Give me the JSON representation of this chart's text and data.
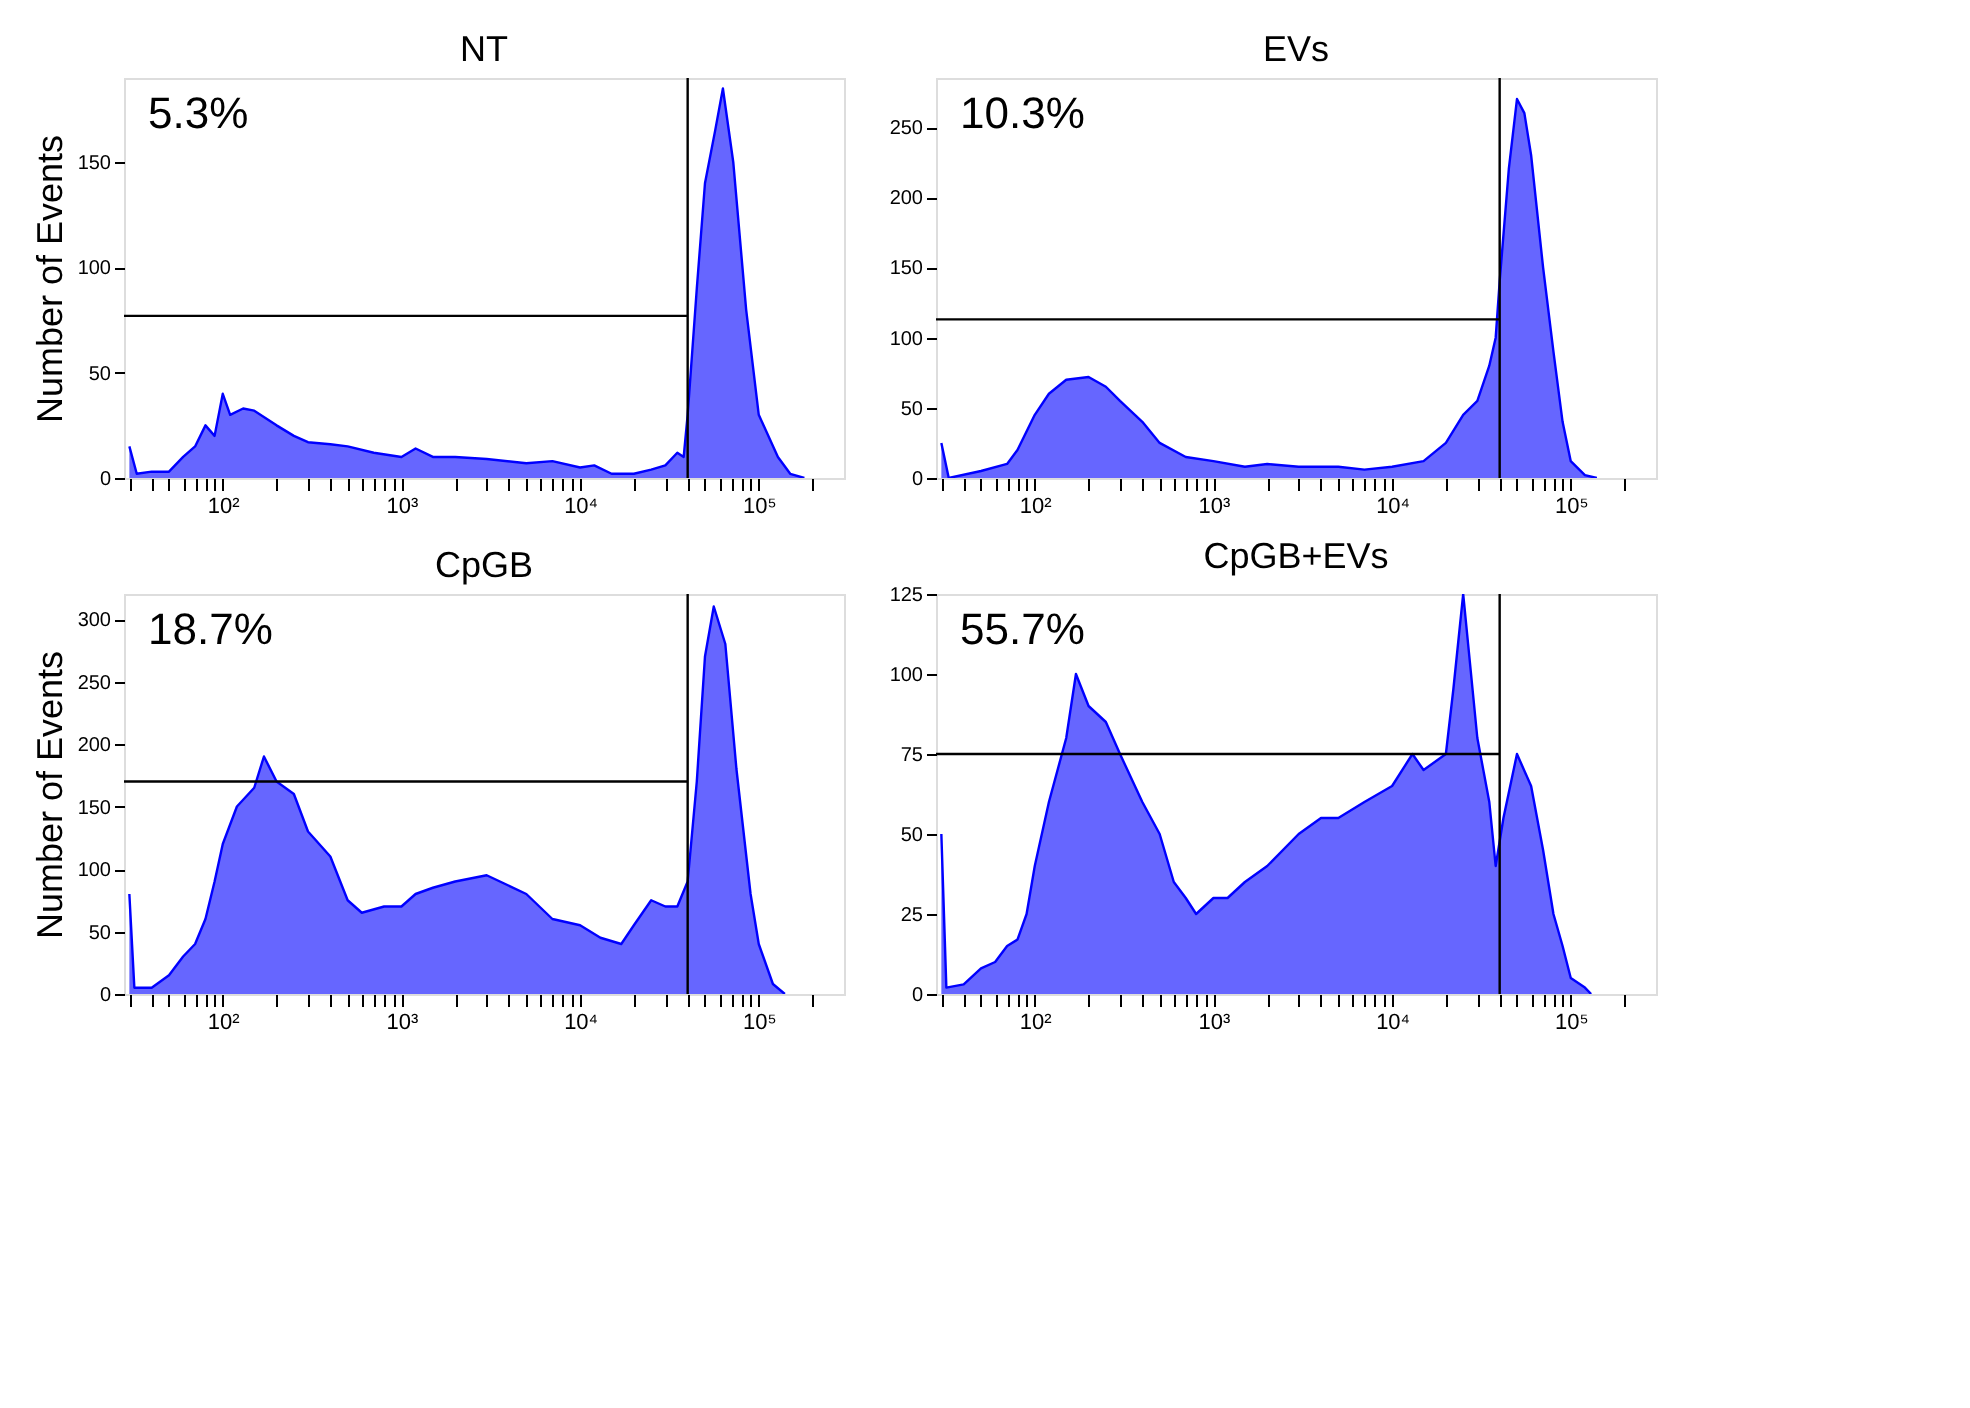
{
  "chart_data": [
    {
      "type": "area",
      "title": "NT",
      "ylabel": "Number of Events",
      "color": "#0000ff",
      "log": "x",
      "grid": false,
      "annotations": [
        "5.3%"
      ],
      "x": [
        30,
        33,
        40,
        50,
        60,
        70,
        80,
        90,
        100,
        110,
        130,
        150,
        200,
        250,
        300,
        400,
        500,
        700,
        1000,
        1200,
        1500,
        2000,
        3000,
        5000,
        7000,
        10000,
        12000,
        15000,
        20000,
        25000,
        30000,
        35000,
        38000,
        40000,
        45000,
        50000,
        57000,
        63000,
        72000,
        85000,
        100000,
        128000,
        150000,
        180000
      ],
      "values": [
        15,
        2,
        3,
        3,
        10,
        15,
        25,
        20,
        40,
        30,
        33,
        32,
        25,
        20,
        17,
        16,
        15,
        12,
        10,
        14,
        10,
        10,
        9,
        7,
        8,
        5,
        6,
        2,
        2,
        4,
        6,
        12,
        10,
        30,
        90,
        140,
        165,
        185,
        150,
        80,
        30,
        10,
        2,
        0
      ],
      "xlim": [
        28,
        300000
      ],
      "ylim": [
        0,
        190
      ],
      "yticks": [
        0,
        50,
        100,
        150
      ],
      "xticks": [
        {
          "value": 30,
          "label": null
        },
        {
          "value": 40,
          "label": null
        },
        {
          "value": 50,
          "label": null
        },
        {
          "value": 60,
          "label": null
        },
        {
          "value": 70,
          "label": null
        },
        {
          "value": 80,
          "label": null
        },
        {
          "value": 90,
          "label": null
        },
        {
          "value": 100,
          "label": "10²"
        },
        {
          "value": 200,
          "label": null
        },
        {
          "value": 300,
          "label": null
        },
        {
          "value": 400,
          "label": null
        },
        {
          "value": 500,
          "label": null
        },
        {
          "value": 600,
          "label": null
        },
        {
          "value": 700,
          "label": null
        },
        {
          "value": 800,
          "label": null
        },
        {
          "value": 900,
          "label": null
        },
        {
          "value": 1000,
          "label": "10³"
        },
        {
          "value": 2000,
          "label": null
        },
        {
          "value": 3000,
          "label": null
        },
        {
          "value": 4000,
          "label": null
        },
        {
          "value": 5000,
          "label": null
        },
        {
          "value": 6000,
          "label": null
        },
        {
          "value": 7000,
          "label": null
        },
        {
          "value": 8000,
          "label": null
        },
        {
          "value": 9000,
          "label": null
        },
        {
          "value": 10000,
          "label": "10⁴"
        },
        {
          "value": 20000,
          "label": null
        },
        {
          "value": 30000,
          "label": null
        },
        {
          "value": 40000,
          "label": null
        },
        {
          "value": 50000,
          "label": null
        },
        {
          "value": 60000,
          "label": null
        },
        {
          "value": 70000,
          "label": null
        },
        {
          "value": 80000,
          "label": null
        },
        {
          "value": 90000,
          "label": null
        },
        {
          "value": 100000,
          "label": "10⁵"
        },
        {
          "value": 200000,
          "label": null
        }
      ],
      "ref_lines": [
        {
          "axis": "x",
          "value": 40000,
          "color": "#000000"
        },
        {
          "axis": "y",
          "value": 77,
          "color": "#000000"
        }
      ]
    },
    {
      "type": "area",
      "title": "EVs",
      "color": "#0000ff",
      "log": "x",
      "grid": false,
      "annotations": [
        "10.3%"
      ],
      "x": [
        30,
        33,
        50,
        70,
        80,
        100,
        120,
        150,
        200,
        250,
        300,
        400,
        500,
        700,
        1000,
        1500,
        2000,
        3000,
        5000,
        7000,
        10000,
        15000,
        20000,
        25000,
        30000,
        35000,
        38000,
        40000,
        45000,
        50000,
        55000,
        60000,
        70000,
        80000,
        90000,
        100000,
        120000,
        140000
      ],
      "values": [
        25,
        0,
        5,
        10,
        20,
        45,
        60,
        70,
        72,
        65,
        55,
        40,
        25,
        15,
        12,
        8,
        10,
        8,
        8,
        6,
        8,
        12,
        25,
        45,
        55,
        80,
        100,
        140,
        220,
        270,
        260,
        230,
        150,
        90,
        40,
        12,
        2,
        0
      ],
      "xlim": [
        28,
        300000
      ],
      "ylim": [
        0,
        285
      ],
      "yticks": [
        0,
        50,
        100,
        150,
        200,
        250
      ],
      "xticks": [
        {
          "value": 30,
          "label": null
        },
        {
          "value": 40,
          "label": null
        },
        {
          "value": 50,
          "label": null
        },
        {
          "value": 60,
          "label": null
        },
        {
          "value": 70,
          "label": null
        },
        {
          "value": 80,
          "label": null
        },
        {
          "value": 90,
          "label": null
        },
        {
          "value": 100,
          "label": "10²"
        },
        {
          "value": 200,
          "label": null
        },
        {
          "value": 300,
          "label": null
        },
        {
          "value": 400,
          "label": null
        },
        {
          "value": 500,
          "label": null
        },
        {
          "value": 600,
          "label": null
        },
        {
          "value": 700,
          "label": null
        },
        {
          "value": 800,
          "label": null
        },
        {
          "value": 900,
          "label": null
        },
        {
          "value": 1000,
          "label": "10³"
        },
        {
          "value": 2000,
          "label": null
        },
        {
          "value": 3000,
          "label": null
        },
        {
          "value": 4000,
          "label": null
        },
        {
          "value": 5000,
          "label": null
        },
        {
          "value": 6000,
          "label": null
        },
        {
          "value": 7000,
          "label": null
        },
        {
          "value": 8000,
          "label": null
        },
        {
          "value": 9000,
          "label": null
        },
        {
          "value": 10000,
          "label": "10⁴"
        },
        {
          "value": 20000,
          "label": null
        },
        {
          "value": 30000,
          "label": null
        },
        {
          "value": 40000,
          "label": null
        },
        {
          "value": 50000,
          "label": null
        },
        {
          "value": 60000,
          "label": null
        },
        {
          "value": 70000,
          "label": null
        },
        {
          "value": 80000,
          "label": null
        },
        {
          "value": 90000,
          "label": null
        },
        {
          "value": 100000,
          "label": "10⁵"
        },
        {
          "value": 200000,
          "label": null
        }
      ],
      "ref_lines": [
        {
          "axis": "x",
          "value": 40000,
          "color": "#000000"
        },
        {
          "axis": "y",
          "value": 113,
          "color": "#000000"
        }
      ]
    },
    {
      "type": "area",
      "title": "CpGB",
      "ylabel": "Number of Events",
      "color": "#0000ff",
      "log": "x",
      "grid": false,
      "annotations": [
        "18.7%"
      ],
      "x": [
        30,
        32,
        40,
        50,
        60,
        70,
        80,
        90,
        100,
        120,
        150,
        170,
        200,
        250,
        300,
        400,
        500,
        600,
        800,
        1000,
        1200,
        1500,
        2000,
        3000,
        5000,
        7000,
        10000,
        13000,
        17000,
        20000,
        25000,
        30000,
        35000,
        40000,
        45000,
        50000,
        56000,
        65000,
        75000,
        90000,
        100000,
        120000,
        140000
      ],
      "values": [
        80,
        5,
        5,
        15,
        30,
        40,
        60,
        90,
        120,
        150,
        165,
        190,
        170,
        160,
        130,
        110,
        75,
        65,
        70,
        70,
        80,
        85,
        90,
        95,
        80,
        60,
        55,
        45,
        40,
        55,
        75,
        70,
        70,
        90,
        170,
        270,
        310,
        280,
        180,
        80,
        40,
        8,
        0
      ],
      "xlim": [
        28,
        300000
      ],
      "ylim": [
        0,
        320
      ],
      "yticks": [
        0,
        50,
        100,
        150,
        200,
        250,
        300
      ],
      "xticks": [
        {
          "value": 30,
          "label": null
        },
        {
          "value": 40,
          "label": null
        },
        {
          "value": 50,
          "label": null
        },
        {
          "value": 60,
          "label": null
        },
        {
          "value": 70,
          "label": null
        },
        {
          "value": 80,
          "label": null
        },
        {
          "value": 90,
          "label": null
        },
        {
          "value": 100,
          "label": "10²"
        },
        {
          "value": 200,
          "label": null
        },
        {
          "value": 300,
          "label": null
        },
        {
          "value": 400,
          "label": null
        },
        {
          "value": 500,
          "label": null
        },
        {
          "value": 600,
          "label": null
        },
        {
          "value": 700,
          "label": null
        },
        {
          "value": 800,
          "label": null
        },
        {
          "value": 900,
          "label": null
        },
        {
          "value": 1000,
          "label": "10³"
        },
        {
          "value": 2000,
          "label": null
        },
        {
          "value": 3000,
          "label": null
        },
        {
          "value": 4000,
          "label": null
        },
        {
          "value": 5000,
          "label": null
        },
        {
          "value": 6000,
          "label": null
        },
        {
          "value": 7000,
          "label": null
        },
        {
          "value": 8000,
          "label": null
        },
        {
          "value": 9000,
          "label": null
        },
        {
          "value": 10000,
          "label": "10⁴"
        },
        {
          "value": 20000,
          "label": null
        },
        {
          "value": 30000,
          "label": null
        },
        {
          "value": 40000,
          "label": null
        },
        {
          "value": 50000,
          "label": null
        },
        {
          "value": 60000,
          "label": null
        },
        {
          "value": 70000,
          "label": null
        },
        {
          "value": 80000,
          "label": null
        },
        {
          "value": 90000,
          "label": null
        },
        {
          "value": 100000,
          "label": "10⁵"
        },
        {
          "value": 200000,
          "label": null
        }
      ],
      "ref_lines": [
        {
          "axis": "x",
          "value": 40000,
          "color": "#000000"
        },
        {
          "axis": "y",
          "value": 170,
          "color": "#000000"
        }
      ]
    },
    {
      "type": "area",
      "title": "CpGB+EVs",
      "color": "#0000ff",
      "log": "x",
      "grid": false,
      "annotations": [
        "55.7%"
      ],
      "x": [
        30,
        32,
        40,
        50,
        60,
        70,
        80,
        90,
        100,
        120,
        150,
        170,
        200,
        250,
        300,
        400,
        500,
        600,
        700,
        800,
        1000,
        1200,
        1500,
        2000,
        3000,
        4000,
        5000,
        7000,
        10000,
        13000,
        15000,
        20000,
        22000,
        25000,
        30000,
        35000,
        38000,
        42000,
        50000,
        60000,
        70000,
        80000,
        90000,
        100000,
        120000,
        130000
      ],
      "values": [
        50,
        2,
        3,
        8,
        10,
        15,
        17,
        25,
        40,
        60,
        80,
        100,
        90,
        85,
        75,
        60,
        50,
        35,
        30,
        25,
        30,
        30,
        35,
        40,
        50,
        55,
        55,
        60,
        65,
        75,
        70,
        75,
        95,
        125,
        80,
        60,
        40,
        55,
        75,
        65,
        45,
        25,
        15,
        5,
        2,
        0
      ],
      "xlim": [
        28,
        300000
      ],
      "ylim": [
        0,
        125
      ],
      "yticks": [
        0,
        25,
        50,
        75,
        100,
        125
      ],
      "xticks": [
        {
          "value": 30,
          "label": null
        },
        {
          "value": 40,
          "label": null
        },
        {
          "value": 50,
          "label": null
        },
        {
          "value": 60,
          "label": null
        },
        {
          "value": 70,
          "label": null
        },
        {
          "value": 80,
          "label": null
        },
        {
          "value": 90,
          "label": null
        },
        {
          "value": 100,
          "label": "10²"
        },
        {
          "value": 200,
          "label": null
        },
        {
          "value": 300,
          "label": null
        },
        {
          "value": 400,
          "label": null
        },
        {
          "value": 500,
          "label": null
        },
        {
          "value": 600,
          "label": null
        },
        {
          "value": 700,
          "label": null
        },
        {
          "value": 800,
          "label": null
        },
        {
          "value": 900,
          "label": null
        },
        {
          "value": 1000,
          "label": "10³"
        },
        {
          "value": 2000,
          "label": null
        },
        {
          "value": 3000,
          "label": null
        },
        {
          "value": 4000,
          "label": null
        },
        {
          "value": 5000,
          "label": null
        },
        {
          "value": 6000,
          "label": null
        },
        {
          "value": 7000,
          "label": null
        },
        {
          "value": 8000,
          "label": null
        },
        {
          "value": 9000,
          "label": null
        },
        {
          "value": 10000,
          "label": "10⁴"
        },
        {
          "value": 20000,
          "label": null
        },
        {
          "value": 30000,
          "label": null
        },
        {
          "value": 40000,
          "label": null
        },
        {
          "value": 50000,
          "label": null
        },
        {
          "value": 60000,
          "label": null
        },
        {
          "value": 70000,
          "label": null
        },
        {
          "value": 80000,
          "label": null
        },
        {
          "value": 90000,
          "label": null
        },
        {
          "value": 100000,
          "label": "10⁵"
        },
        {
          "value": 200000,
          "label": null
        }
      ],
      "ref_lines": [
        {
          "axis": "x",
          "value": 40000,
          "color": "#000000"
        },
        {
          "axis": "y",
          "value": 75,
          "color": "#000000"
        }
      ]
    }
  ]
}
